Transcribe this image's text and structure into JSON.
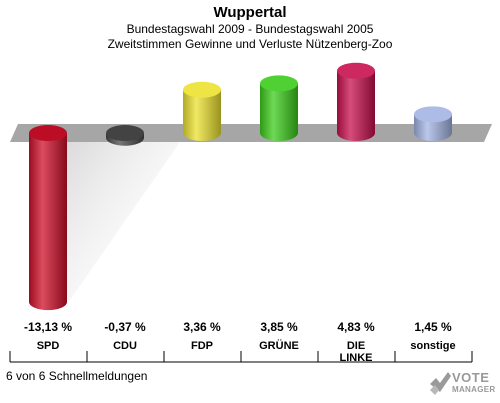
{
  "title": "Wuppertal",
  "subtitle1": "Bundestagswahl 2009 - Bundestagswahl 2005",
  "subtitle2": "Zweitstimmen Gewinne und Verluste Nützenberg-Zoo",
  "footer": "6 von 6 Schnellmeldungen",
  "logo": {
    "line1": "VOTE",
    "line2": "MANAGER"
  },
  "chart_data": {
    "type": "bar",
    "categories": [
      "SPD",
      "CDU",
      "FDP",
      "GRÜNE",
      "DIE LINKE",
      "sonstige"
    ],
    "values": [
      -13.13,
      -0.37,
      3.36,
      3.85,
      4.83,
      1.45
    ],
    "value_labels": [
      "-13,13 %",
      "-0,37 %",
      "3,36 %",
      "3,85 %",
      "4,83 %",
      "1,45 %"
    ],
    "colors": [
      "#d0102a",
      "#4a4a4a",
      "#ece230",
      "#3ccc1c",
      "#c8104e",
      "#a4b4e4"
    ],
    "ylim": [
      -13.5,
      5.5
    ],
    "grid": false,
    "legend": "none"
  }
}
